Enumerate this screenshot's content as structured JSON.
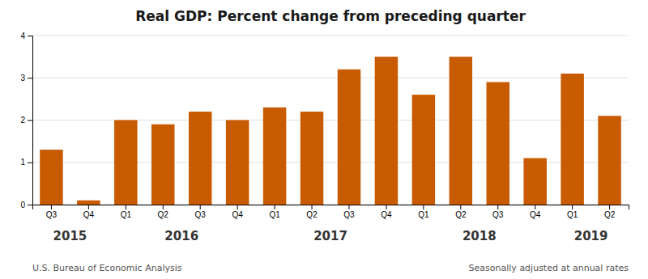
{
  "chart_data": {
    "type": "bar",
    "title": "Real GDP:  Percent change from preceding quarter",
    "categories": [
      "Q3",
      "Q4",
      "Q1",
      "Q2",
      "Q3",
      "Q4",
      "Q1",
      "Q2",
      "Q3",
      "Q4",
      "Q1",
      "Q2",
      "Q3",
      "Q4",
      "Q1",
      "Q2"
    ],
    "values": [
      1.3,
      0.1,
      2.0,
      1.9,
      2.2,
      2.0,
      2.3,
      2.2,
      3.2,
      3.5,
      2.6,
      3.5,
      2.9,
      1.1,
      3.1,
      2.1
    ],
    "color": "#C85A00",
    "ylim": [
      0,
      4
    ],
    "yticks": [
      0,
      1,
      2,
      3,
      4
    ],
    "grid": true,
    "category_groups": [
      {
        "label": "2015",
        "size": 2
      },
      {
        "label": "2016",
        "size": 4
      },
      {
        "label": "2017",
        "size": 4
      },
      {
        "label": "2018",
        "size": 4
      },
      {
        "label": "2019",
        "size": 2
      }
    ],
    "annotations": [
      "U.S. Bureau of Economic Analysis",
      "Seasonally adjusted at annual rates"
    ]
  }
}
